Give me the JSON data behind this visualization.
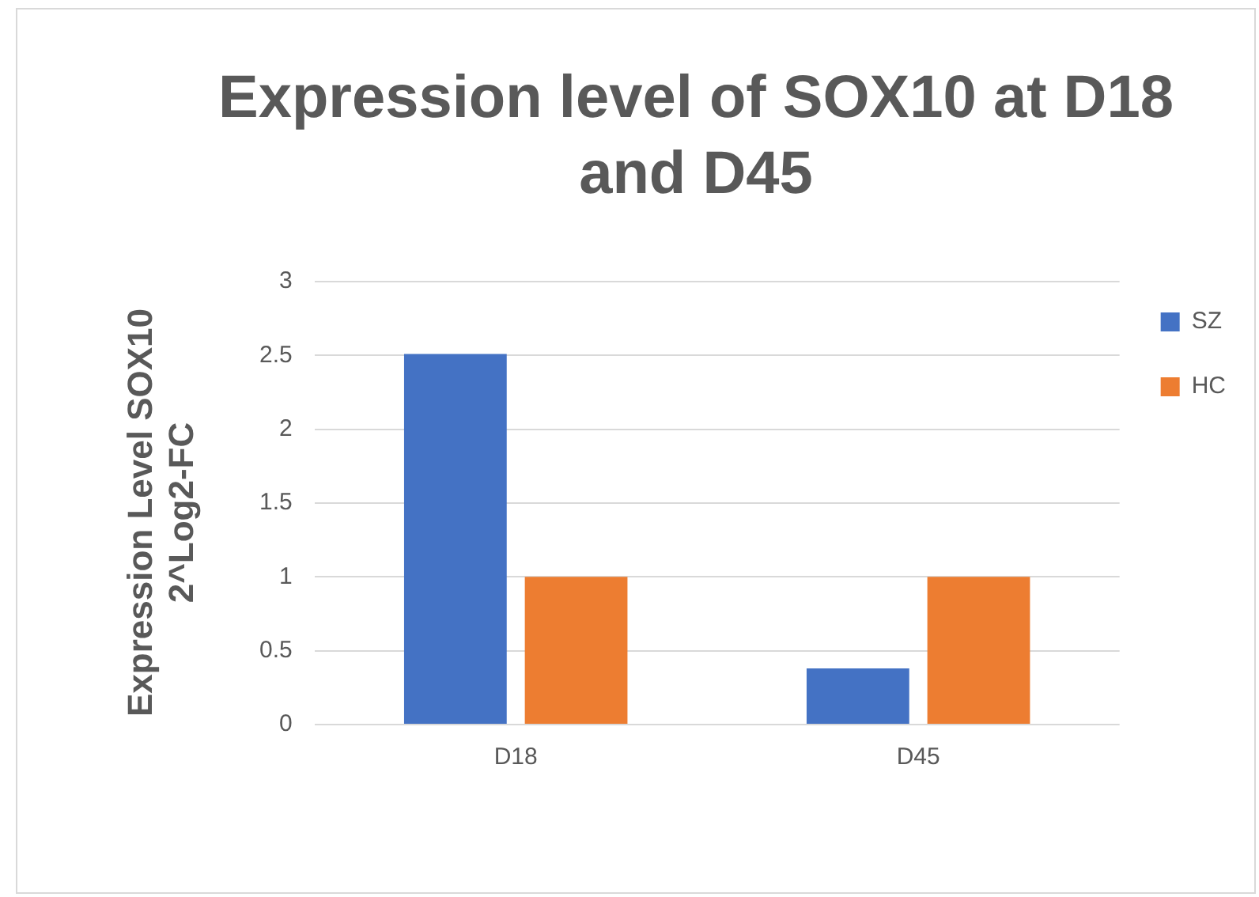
{
  "chart_data": {
    "type": "bar",
    "title": "Expression level of SOX10 at D18 and D45",
    "ylabel": "Expression Level SOX10 2^Log2-FC",
    "categories": [
      "D18",
      "D45"
    ],
    "series": [
      {
        "name": "SZ",
        "color": "#4472c4",
        "values": [
          2.51,
          0.38
        ]
      },
      {
        "name": "HC",
        "color": "#ed7d31",
        "values": [
          1,
          1
        ]
      }
    ],
    "ylim": [
      0,
      3
    ],
    "yticks": [
      0,
      0.5,
      1,
      1.5,
      2,
      2.5,
      3
    ],
    "grid": "y",
    "legend": "top right"
  }
}
